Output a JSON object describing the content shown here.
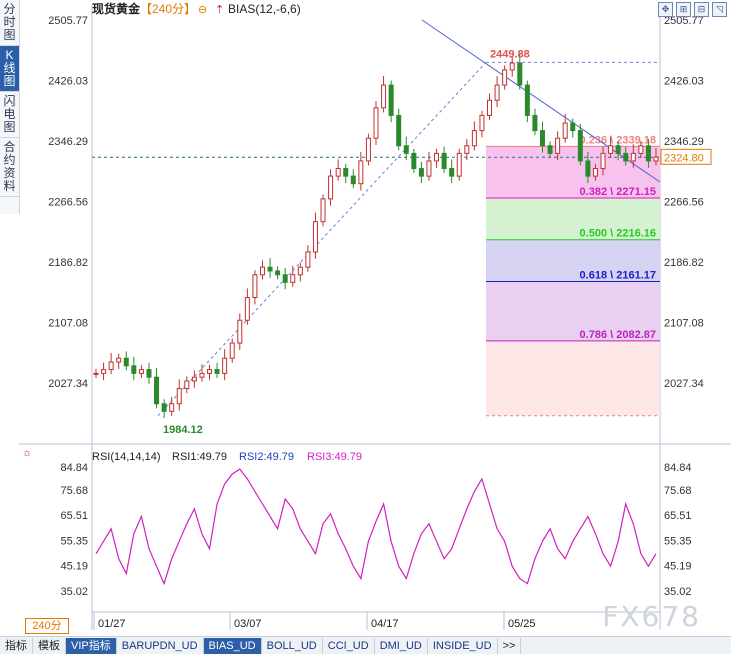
{
  "sidebar": {
    "tabs": [
      "分时图",
      "K线图",
      "闪电图",
      "合约资料"
    ],
    "active": 1
  },
  "header": {
    "symbol": "现货黄金",
    "period": "【240分】",
    "indicator": "BIAS(12,-6,6)"
  },
  "toolbar": {
    "icons": [
      "move-icon",
      "zoom-in-icon",
      "zoom-out-icon",
      "collapse-icon"
    ]
  },
  "main": {
    "price_ticks": [
      "2505.77",
      "2426.03",
      "2346.29",
      "2266.56",
      "2186.82",
      "2107.08",
      "2027.34"
    ],
    "current_price": "2324.80",
    "high_label": "2449.88",
    "low_label": "1984.12",
    "fib_levels": [
      {
        "label": "0.236 \\ 2339.18",
        "price": 2339.18,
        "color": "#f08080"
      },
      {
        "label": "0.382 \\ 2271.15",
        "price": 2271.15,
        "color": "#d020c0"
      },
      {
        "label": "0.500 \\ 2216.16",
        "price": 2216.16,
        "color": "#22cc22"
      },
      {
        "label": "0.618 \\ 2161.17",
        "price": 2161.17,
        "color": "#2020c0"
      },
      {
        "label": "0.786 \\ 2082.87",
        "price": 2082.87,
        "color": "#c020c0"
      }
    ]
  },
  "rsi": {
    "title": "RSI(14,14,14)",
    "rsi1": "RSI1:49.79",
    "rsi2": "RSI2:49.79",
    "rsi3": "RSI3:49.79",
    "ticks": [
      "84.84",
      "75.68",
      "65.51",
      "55.35",
      "45.19",
      "35.02"
    ]
  },
  "x_axis": {
    "labels": [
      "01/27",
      "03/07",
      "04/17",
      "05/25"
    ]
  },
  "period_selector": "240分",
  "bottom_tabs": [
    "指标",
    "模板",
    "VIP指标",
    "BARUPDN_UD",
    "BIAS_UD",
    "BOLL_UD",
    "CCI_UD",
    "DMI_UD",
    "INSIDE_UD",
    ">>"
  ],
  "watermark": "FX678",
  "chart_data": {
    "type": "candlestick",
    "y_range": [
      1984,
      2506
    ],
    "x_categories": [
      "01/27",
      "03/07",
      "04/17",
      "05/25"
    ],
    "price_path": [
      2040,
      2045,
      2055,
      2060,
      2050,
      2040,
      2045,
      2035,
      2000,
      1990,
      2000,
      2020,
      2030,
      2035,
      2040,
      2045,
      2040,
      2060,
      2080,
      2110,
      2140,
      2170,
      2180,
      2175,
      2170,
      2160,
      2170,
      2180,
      2200,
      2240,
      2270,
      2300,
      2310,
      2300,
      2290,
      2320,
      2350,
      2390,
      2420,
      2380,
      2340,
      2330,
      2310,
      2300,
      2320,
      2330,
      2310,
      2300,
      2330,
      2340,
      2360,
      2380,
      2400,
      2420,
      2440,
      2449,
      2420,
      2380,
      2360,
      2340,
      2330,
      2350,
      2370,
      2360,
      2320,
      2300,
      2310,
      2330,
      2340,
      2330,
      2320,
      2330,
      2340,
      2320,
      2325
    ],
    "rsi_path": [
      50,
      55,
      60,
      48,
      42,
      58,
      65,
      52,
      45,
      38,
      48,
      55,
      62,
      68,
      58,
      52,
      70,
      78,
      82,
      84,
      80,
      75,
      70,
      65,
      60,
      72,
      68,
      60,
      55,
      50,
      62,
      66,
      58,
      52,
      45,
      40,
      55,
      63,
      70,
      55,
      45,
      40,
      50,
      58,
      62,
      55,
      48,
      52,
      60,
      68,
      75,
      80,
      70,
      60,
      55,
      45,
      40,
      38,
      48,
      55,
      60,
      52,
      48,
      55,
      60,
      65,
      58,
      50,
      45,
      55,
      70,
      62,
      50,
      45,
      50
    ]
  }
}
